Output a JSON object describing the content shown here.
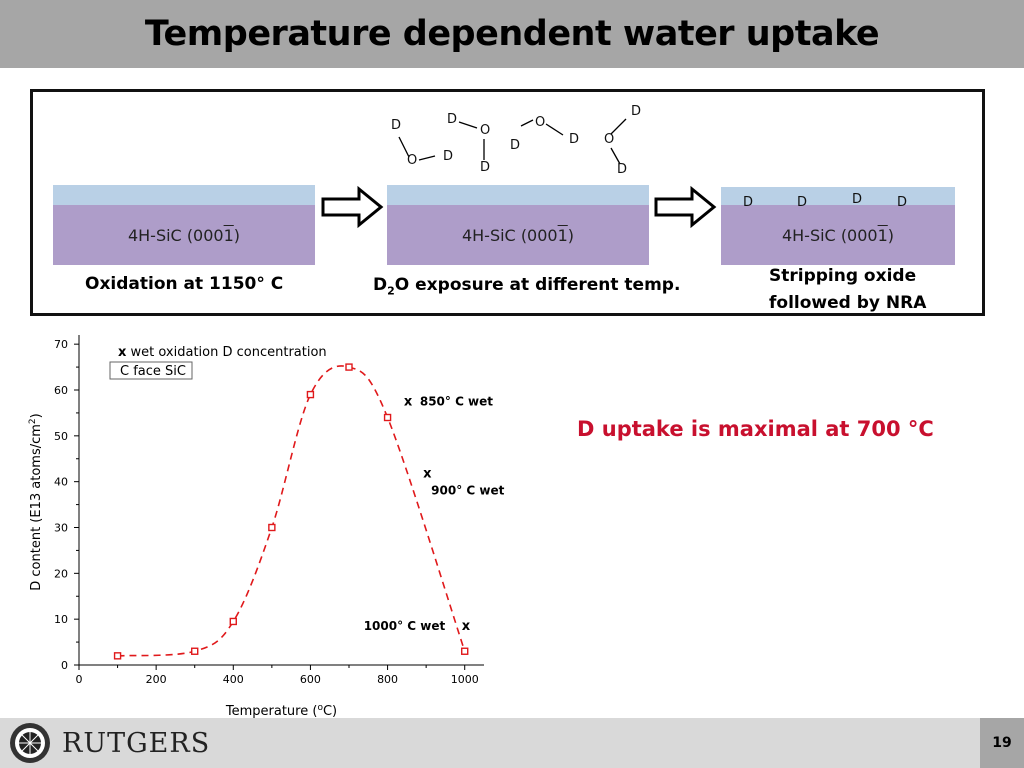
{
  "title": "Temperature dependent water uptake",
  "process": {
    "substrate_label": "4H-SiC (000",
    "substrate_bar": "1",
    "substrate_close": ")",
    "steps": [
      {
        "label_lines": [
          "Oxidation at 1150° C"
        ]
      },
      {
        "label_prefix": "D",
        "label_sub": "2",
        "label_suffix": "O exposure at different temp."
      },
      {
        "label_lines": [
          "Stripping oxide",
          "followed by NRA"
        ]
      }
    ],
    "molecule_letters": {
      "o": "O",
      "d": "D"
    },
    "surface_d_letters": [
      "D",
      "D",
      "D",
      "D"
    ]
  },
  "conclusion": "D uptake is maximal at 700 °C",
  "page_number": "19",
  "brand": "RUTGERS",
  "colors": {
    "title_bar": "#a6a6a6",
    "oxide": "#b9d0e6",
    "substrate": "#ae9dc9",
    "series": "#e0191b",
    "conclusion": "#c8102e"
  },
  "chart_data": {
    "type": "line",
    "xlabel_text": "Temperature (",
    "xlabel_sup": "o",
    "xlabel_end": "C)",
    "ylabel_text": "D content (E13 atoms/cm",
    "ylabel_sup": "2",
    "ylabel_end": ")",
    "xlim": [
      0,
      1050
    ],
    "ylim": [
      0,
      72
    ],
    "xticks": [
      0,
      200,
      400,
      600,
      800,
      1000
    ],
    "yticks": [
      0,
      10,
      20,
      30,
      40,
      50,
      60,
      70
    ],
    "series": [
      {
        "name": "C face SiC",
        "line_style": "dashed",
        "marker": "square",
        "x": [
          100,
          300,
          400,
          500,
          600,
          700,
          800,
          1000
        ],
        "y": [
          2,
          3,
          9.5,
          30,
          59,
          65,
          54,
          3
        ]
      }
    ],
    "legend_note_mark": "x",
    "legend_note_text": " wet oxidation D concentration",
    "legend_box_text": "C face SiC",
    "annotations": [
      {
        "text": "850° C wet",
        "x": 850,
        "y": 57.5
      },
      {
        "text": "900° C wet",
        "x": 900,
        "y": 40
      },
      {
        "text": "1000° C wet",
        "x": 1000,
        "y": 9
      }
    ],
    "annotation_mark": "x",
    "grid": false
  }
}
